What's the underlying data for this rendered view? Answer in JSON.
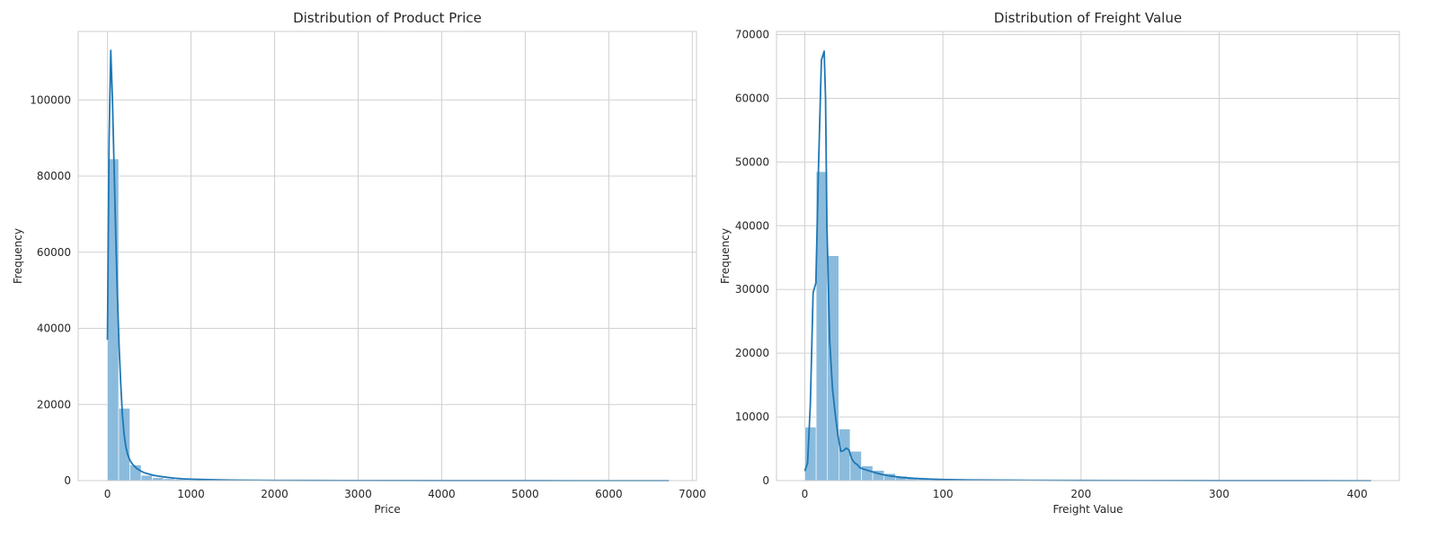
{
  "colors": {
    "bar_fill": "#8bbbdc",
    "bar_stroke": "#ffffff",
    "kde_line": "#1f77b4",
    "grid": "#d0d0d0",
    "frame": "#cccccc",
    "background": "#ffffff"
  },
  "chart_data": [
    {
      "type": "bar",
      "subtype": "histogram_with_kde",
      "title": "Distribution of Product Price",
      "xlabel": "Price",
      "ylabel": "Frequency",
      "xlim": [
        -350,
        7050
      ],
      "ylim": [
        0,
        118000
      ],
      "xticks": [
        0,
        1000,
        2000,
        3000,
        4000,
        5000,
        6000,
        7000
      ],
      "yticks": [
        0,
        20000,
        40000,
        60000,
        80000,
        100000
      ],
      "grid": true,
      "bin_edges": [
        0,
        134.4,
        268.8,
        403.2,
        537.6,
        672,
        806.4,
        940.8,
        1075.2,
        1209.6,
        1344,
        1478.4,
        1612.8,
        1747.2,
        1881.6,
        2016,
        2150.4,
        2284.8,
        2419.2,
        2553.6,
        2688,
        2822.4,
        2956.8,
        3091.2,
        3225.6,
        3360,
        3494.4,
        3628.8,
        3763.2,
        3897.6,
        4032,
        4166.4,
        4300.8,
        4435.2,
        4569.6,
        4704,
        4838.4,
        4972.8,
        5107.2,
        5241.6,
        5376,
        5510.4,
        5644.8,
        5779.2,
        5913.6,
        6048,
        6182.4,
        6316.8,
        6451.2,
        6585.6,
        6720
      ],
      "values": [
        84500,
        19000,
        4100,
        1400,
        800,
        500,
        350,
        250,
        180,
        120,
        90,
        70,
        50,
        40,
        30,
        25,
        20,
        15,
        12,
        10,
        8,
        7,
        6,
        5,
        4,
        4,
        3,
        3,
        3,
        2,
        2,
        2,
        2,
        1,
        1,
        1,
        1,
        1,
        1,
        1,
        1,
        1,
        1,
        1,
        1,
        1,
        1,
        1,
        1,
        1
      ],
      "kde": {
        "x": [
          0,
          20,
          40,
          60,
          80,
          100,
          120,
          140,
          160,
          180,
          200,
          220,
          240,
          270,
          300,
          350,
          400,
          450,
          500,
          550,
          600,
          700,
          800,
          900,
          1000,
          1200,
          1400,
          1600,
          1800,
          2000,
          2500,
          3000,
          4000,
          5000,
          6000,
          6720
        ],
        "y": [
          37000,
          90000,
          113000,
          100000,
          82000,
          64000,
          48000,
          35000,
          25000,
          17000,
          12000,
          9000,
          7000,
          5300,
          4300,
          3200,
          2500,
          2000,
          1700,
          1400,
          1200,
          900,
          650,
          480,
          380,
          250,
          160,
          110,
          80,
          60,
          40,
          25,
          15,
          10,
          8,
          6
        ]
      }
    },
    {
      "type": "bar",
      "subtype": "histogram_with_kde",
      "title": "Distribution of Freight Value",
      "xlabel": "Freight Value",
      "ylabel": "Frequency",
      "xlim": [
        -20.5,
        430.5
      ],
      "ylim": [
        0,
        70500
      ],
      "xticks": [
        0,
        100,
        200,
        300,
        400
      ],
      "yticks": [
        0,
        10000,
        20000,
        30000,
        40000,
        50000,
        60000,
        70000
      ],
      "grid": true,
      "bin_edges": [
        0,
        8.2,
        16.4,
        24.6,
        32.8,
        41,
        49.2,
        57.4,
        65.6,
        73.8,
        82,
        90.2,
        98.4,
        106.6,
        114.8,
        123,
        131.2,
        139.4,
        147.6,
        155.8,
        164,
        172.2,
        180.4,
        188.6,
        196.8,
        205,
        213.2,
        221.4,
        229.6,
        237.8,
        246,
        254.2,
        262.4,
        270.6,
        278.8,
        287,
        295.2,
        303.4,
        311.6,
        319.8,
        328,
        336.2,
        344.4,
        352.6,
        360.8,
        369,
        377.2,
        385.4,
        393.6,
        401.8,
        410
      ],
      "values": [
        8400,
        48500,
        35300,
        8100,
        4600,
        2300,
        1600,
        1100,
        700,
        500,
        350,
        250,
        180,
        130,
        100,
        80,
        60,
        45,
        35,
        28,
        22,
        18,
        15,
        12,
        10,
        9,
        8,
        7,
        6,
        5,
        5,
        4,
        4,
        3,
        3,
        3,
        2,
        2,
        2,
        2,
        2,
        1,
        1,
        1,
        1,
        1,
        1,
        1,
        1,
        1
      ],
      "kde": {
        "x": [
          0,
          2,
          4,
          6,
          8,
          10,
          12,
          14,
          15,
          16,
          18,
          20,
          22,
          24,
          26,
          28,
          30,
          32,
          34,
          36,
          38,
          40,
          44,
          50,
          55,
          60,
          70,
          80,
          90,
          100,
          120,
          150,
          200,
          250,
          300,
          350,
          400,
          410
        ],
        "y": [
          1500,
          2800,
          12000,
          29500,
          31000,
          50000,
          66000,
          67400,
          60000,
          40000,
          22000,
          14500,
          10500,
          7000,
          4600,
          4700,
          5100,
          4800,
          3400,
          2800,
          2500,
          2000,
          1700,
          1300,
          1000,
          800,
          500,
          350,
          250,
          180,
          110,
          60,
          30,
          15,
          10,
          6,
          4,
          3
        ]
      }
    }
  ]
}
